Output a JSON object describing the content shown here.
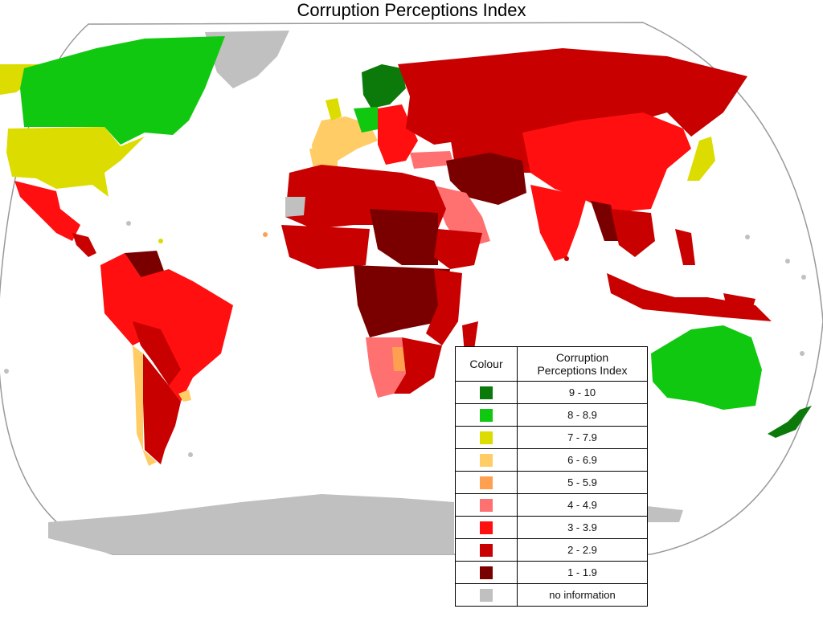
{
  "title": "Corruption Perceptions Index",
  "legend": {
    "header_colour": "Colour",
    "header_index_line1": "Corruption",
    "header_index_line2": "Perceptions Index",
    "rows": [
      {
        "label": "9 - 10",
        "color": "#0b7a0b"
      },
      {
        "label": "8 - 8.9",
        "color": "#10c810"
      },
      {
        "label": "7 - 7.9",
        "color": "#dcdc00"
      },
      {
        "label": "6 - 6.9",
        "color": "#ffcc66"
      },
      {
        "label": "5 - 5.9",
        "color": "#ffa050"
      },
      {
        "label": "4 - 4.9",
        "color": "#ff7070"
      },
      {
        "label": "3 - 3.9",
        "color": "#ff0f0f"
      },
      {
        "label": "2 - 2.9",
        "color": "#c80000"
      },
      {
        "label": "1 - 1.9",
        "color": "#7a0000"
      },
      {
        "label": "no information",
        "color": "#c0c0c0"
      }
    ]
  }
}
